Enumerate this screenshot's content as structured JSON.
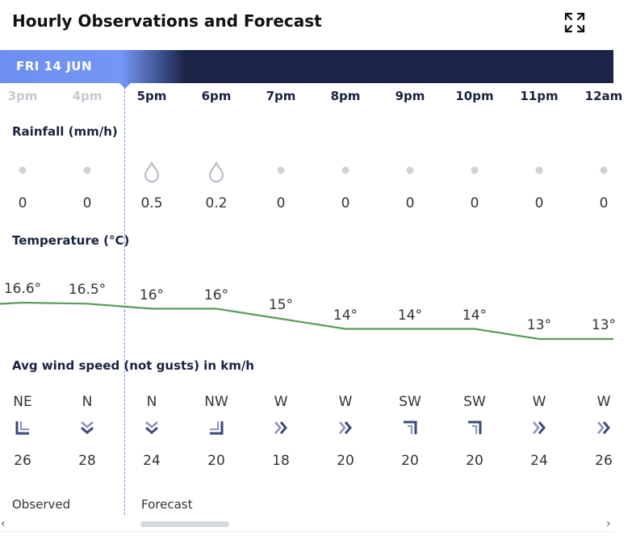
{
  "title": "Hourly Observations and Forecast",
  "icons": {
    "expand": "expand-icon"
  },
  "day_label": "FRI 14 JUN",
  "colors": {
    "line": "#5b9a5d",
    "navy": "#1a2447",
    "accent": "#7497f6"
  },
  "hours": [
    {
      "label": "3pm",
      "past": true
    },
    {
      "label": "4pm",
      "past": true
    },
    {
      "label": "5pm",
      "past": false
    },
    {
      "label": "6pm",
      "past": false
    },
    {
      "label": "7pm",
      "past": false
    },
    {
      "label": "8pm",
      "past": false
    },
    {
      "label": "9pm",
      "past": false
    },
    {
      "label": "10pm",
      "past": false
    },
    {
      "label": "11pm",
      "past": false
    },
    {
      "label": "12am",
      "past": false
    }
  ],
  "rainfall": {
    "label": "Rainfall (mm/h)",
    "values": [
      "0",
      "0",
      "0.5",
      "0.2",
      "0",
      "0",
      "0",
      "0",
      "0",
      "0"
    ],
    "icons": [
      "dot",
      "dot",
      "drop",
      "drop",
      "dot",
      "dot",
      "dot",
      "dot",
      "dot",
      "dot"
    ]
  },
  "temperature": {
    "label": "Temperature (°C)",
    "values": [
      16.6,
      16.5,
      16,
      16,
      15,
      14,
      14,
      14,
      13,
      13
    ],
    "labels": [
      "16.6°",
      "16.5°",
      "16°",
      "16°",
      "15°",
      "14°",
      "14°",
      "14°",
      "13°",
      "13°"
    ]
  },
  "wind": {
    "label": "Avg wind speed (not gusts) in km/h",
    "directions": [
      "NE",
      "N",
      "N",
      "NW",
      "W",
      "W",
      "SW",
      "SW",
      "W",
      "W"
    ],
    "speeds": [
      "26",
      "28",
      "24",
      "20",
      "18",
      "20",
      "20",
      "20",
      "24",
      "26"
    ],
    "arrows": [
      "arrow-ne",
      "arrow-n",
      "arrow-n",
      "arrow-nw",
      "arrow-w",
      "arrow-w",
      "arrow-sw",
      "arrow-sw",
      "arrow-w",
      "arrow-w"
    ]
  },
  "footer": {
    "observed": "Observed",
    "forecast": "Forecast"
  },
  "scroll": {
    "left": "‹",
    "right": "›"
  }
}
